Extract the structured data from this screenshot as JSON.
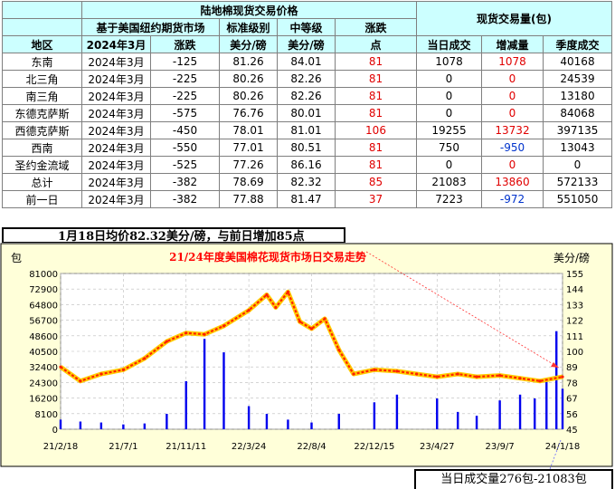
{
  "table": {
    "title": "陆地棉现货交易价格",
    "volume_title": "现货交易量(包)",
    "subheaders": {
      "basis": "基于美国纽约期货市场",
      "standard": "标准级别",
      "middle": "中等级",
      "change": "涨跌"
    },
    "columns": [
      "地区",
      "2024年3月",
      "涨跌",
      "美分/磅",
      "美分/磅",
      "点",
      "当日成交",
      "增减量",
      "季度成交"
    ],
    "rows": [
      {
        "region": "东南",
        "contract": "2024年3月",
        "basis_change": "-125",
        "standard": "81.26",
        "middle": "84.01",
        "points": "81",
        "daily": "1078",
        "delta": "1078",
        "delta_color": "red",
        "season": "40168"
      },
      {
        "region": "北三角",
        "contract": "2024年3月",
        "basis_change": "-225",
        "standard": "80.26",
        "middle": "82.26",
        "points": "81",
        "daily": "0",
        "delta": "0",
        "delta_color": "red",
        "season": "24539"
      },
      {
        "region": "南三角",
        "contract": "2024年3月",
        "basis_change": "-225",
        "standard": "80.26",
        "middle": "82.26",
        "points": "81",
        "daily": "0",
        "delta": "0",
        "delta_color": "red",
        "season": "13180"
      },
      {
        "region": "东德克萨斯",
        "contract": "2024年3月",
        "basis_change": "-575",
        "standard": "76.76",
        "middle": "80.01",
        "points": "81",
        "daily": "0",
        "delta": "0",
        "delta_color": "red",
        "season": "84068"
      },
      {
        "region": "西德克萨斯",
        "contract": "2024年3月",
        "basis_change": "-450",
        "standard": "78.01",
        "middle": "81.01",
        "points": "106",
        "daily": "19255",
        "delta": "13732",
        "delta_color": "red",
        "season": "397135"
      },
      {
        "region": "西南",
        "contract": "2024年3月",
        "basis_change": "-550",
        "standard": "77.01",
        "middle": "80.51",
        "points": "81",
        "daily": "750",
        "delta": "-950",
        "delta_color": "blue",
        "season": "13043"
      },
      {
        "region": "圣约金流域",
        "contract": "2024年3月",
        "basis_change": "-525",
        "standard": "77.26",
        "middle": "86.16",
        "points": "81",
        "daily": "0",
        "delta": "0",
        "delta_color": "red",
        "season": "0"
      },
      {
        "region": "总计",
        "contract": "2024年3月",
        "basis_change": "-382",
        "standard": "78.69",
        "middle": "82.32",
        "points": "85",
        "daily": "21083",
        "delta": "13860",
        "delta_color": "red",
        "season": "572133"
      },
      {
        "region": "前一日",
        "contract": "2024年3月",
        "basis_change": "-382",
        "standard": "77.88",
        "middle": "81.47",
        "points": "37",
        "daily": "7223",
        "delta": "-972",
        "delta_color": "blue",
        "season": "551050"
      }
    ]
  },
  "note": "1月18日均价82.32美分/磅，与前日增加85点",
  "bottom_note": "当日成交量276包-21083包",
  "colors": {
    "header_bg": "#ccffff",
    "chart_bg": "#ffffd9",
    "bars": "#0000ee",
    "price_line": "#ff2200",
    "price_glow": "#ffcc00",
    "red_text": "#e00000",
    "blue_text": "#0033cc"
  },
  "chart_data": {
    "type": "bar+line",
    "title": "21/24年度美国棉花现货市场日交易走势",
    "y_left_label": "包",
    "y_right_label": "美分/磅",
    "x_ticks": [
      "21/2/18",
      "21/7/1",
      "21/11/11",
      "22/3/24",
      "22/8/4",
      "22/12/15",
      "23/4/27",
      "23/9/7",
      "24/1/18"
    ],
    "y_left_ticks": [
      "81000",
      "72900",
      "64800",
      "56700",
      "48600",
      "40500",
      "32400",
      "24300",
      "16200",
      "8100",
      "0"
    ],
    "y_right_ticks": [
      "155",
      "144",
      "133",
      "122",
      "111",
      "100",
      "89",
      "78",
      "67",
      "56",
      "45"
    ],
    "y_left_range": [
      0,
      81000
    ],
    "y_right_range": [
      45,
      155
    ],
    "price_series": {
      "name": "美分/磅",
      "x": [
        "21/2/18",
        "21/4/1",
        "21/5/15",
        "21/7/1",
        "21/8/15",
        "21/10/1",
        "21/11/11",
        "21/12/20",
        "22/1/30",
        "22/3/24",
        "22/5/1",
        "22/5/20",
        "22/6/15",
        "22/7/10",
        "22/8/4",
        "22/9/1",
        "22/10/1",
        "22/11/1",
        "22/12/15",
        "23/2/1",
        "23/3/15",
        "23/4/27",
        "23/6/10",
        "23/7/20",
        "23/9/7",
        "23/10/20",
        "23/12/1",
        "24/1/18"
      ],
      "values": [
        89,
        79,
        84,
        87,
        95,
        107,
        113,
        112,
        118,
        129,
        140,
        131,
        142,
        121,
        116,
        123,
        101,
        84,
        87,
        86,
        84,
        82,
        84,
        82,
        83,
        81,
        79,
        82
      ]
    },
    "volume_series": {
      "name": "包",
      "x": [
        "21/2/18",
        "21/4/1",
        "21/5/15",
        "21/7/1",
        "21/8/15",
        "21/10/1",
        "21/11/11",
        "21/12/20",
        "22/1/30",
        "22/3/24",
        "22/5/1",
        "22/6/15",
        "22/8/4",
        "22/10/1",
        "22/12/15",
        "23/2/1",
        "23/4/27",
        "23/6/10",
        "23/7/20",
        "23/9/7",
        "23/10/20",
        "23/11/20",
        "23/12/15",
        "24/1/5",
        "24/1/18"
      ],
      "values": [
        5000,
        4000,
        3500,
        2500,
        3000,
        8000,
        25000,
        47000,
        40000,
        12000,
        8000,
        5000,
        3500,
        8000,
        14000,
        18000,
        16000,
        9000,
        7000,
        15000,
        18000,
        16000,
        25000,
        51000,
        21083
      ]
    }
  }
}
